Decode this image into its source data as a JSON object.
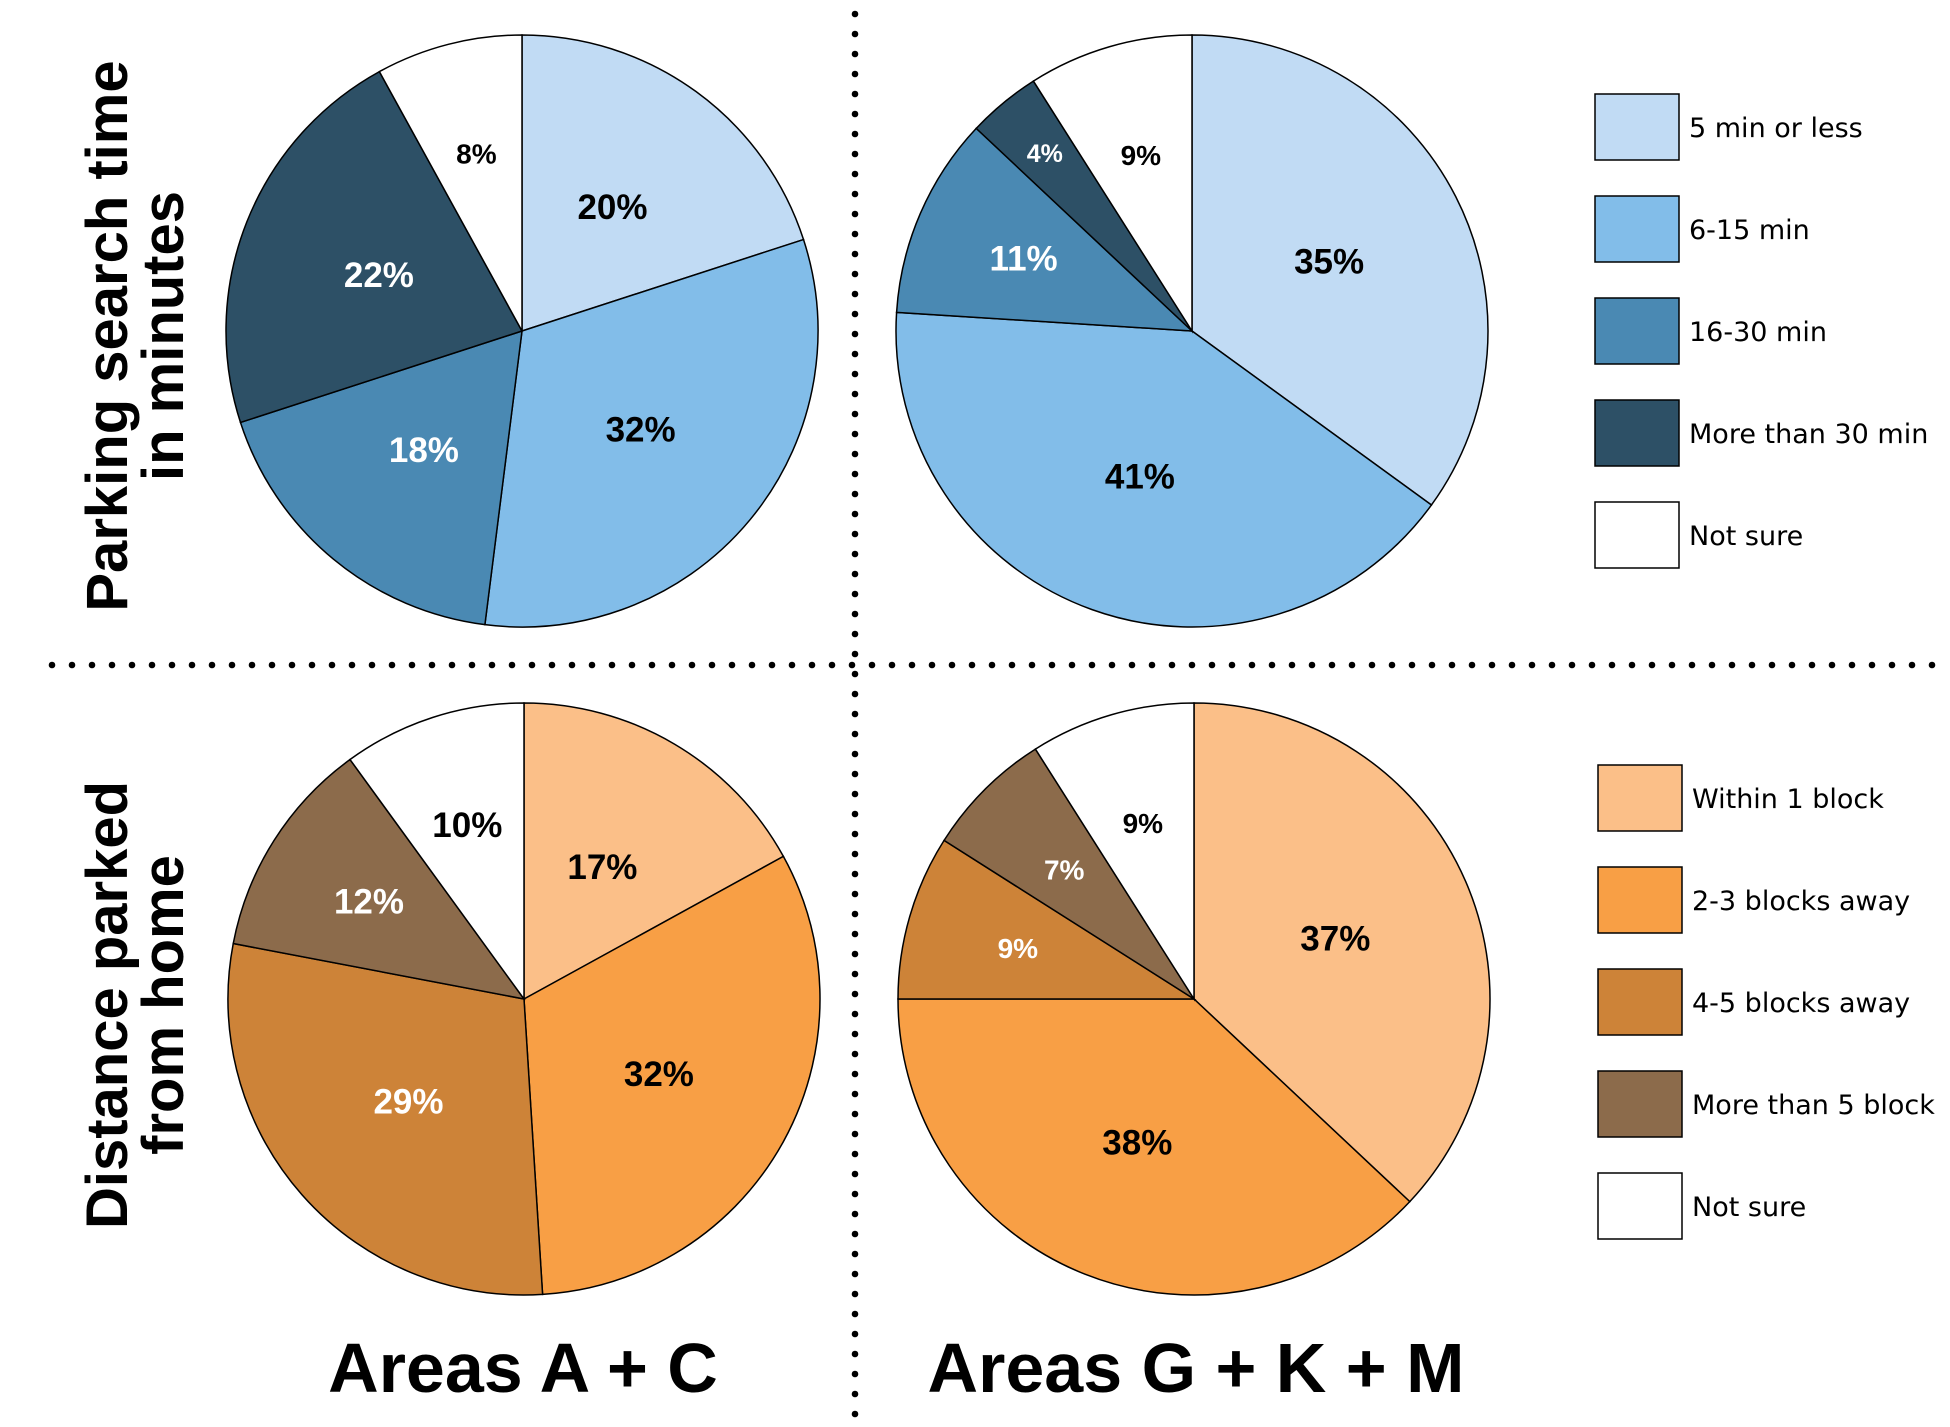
{
  "row_titles": {
    "top": [
      "Parking search time",
      "in minutes"
    ],
    "bottom": [
      "Distance parked",
      "from home"
    ]
  },
  "column_titles": [
    "Areas A + C",
    "Areas G + K + M"
  ],
  "legends": {
    "time": [
      {
        "label": "5 min or less",
        "color": "#c1dbf4"
      },
      {
        "label": "6-15 min",
        "color": "#82bde9"
      },
      {
        "label": "16-30 min",
        "color": "#4a89b3"
      },
      {
        "label": "More than 30 min",
        "color": "#2d5066"
      },
      {
        "label": "Not sure",
        "color": "#ffffff"
      }
    ],
    "distance": [
      {
        "label": "Within 1 block",
        "color": "#fbbf88"
      },
      {
        "label": "2-3 blocks away",
        "color": "#f89f45"
      },
      {
        "label": "4-5 blocks away",
        "color": "#cd8338"
      },
      {
        "label": "More than 5 block",
        "color": "#8c6b4b"
      },
      {
        "label": "Not sure",
        "color": "#ffffff"
      }
    ]
  },
  "chart_data": [
    {
      "type": "pie",
      "title": "",
      "row": "Parking search time in minutes",
      "column": "Areas A + C",
      "categories": [
        "5 min or less",
        "6-15 min",
        "16-30 min",
        "More than 30 min",
        "Not sure"
      ],
      "values": [
        20,
        32,
        18,
        22,
        8
      ],
      "labels": [
        "20%",
        "32%",
        "18%",
        "22%",
        "8%"
      ],
      "colors": [
        "#c1dbf4",
        "#82bde9",
        "#4a89b3",
        "#2d5066",
        "#ffffff"
      ],
      "label_colors": [
        "#000000",
        "#000000",
        "#ffffff",
        "#ffffff",
        "#000000"
      ]
    },
    {
      "type": "pie",
      "title": "",
      "row": "Parking search time in minutes",
      "column": "Areas G + K + M",
      "categories": [
        "5 min or less",
        "6-15 min",
        "16-30 min",
        "More than 30 min",
        "Not sure"
      ],
      "values": [
        35,
        41,
        11,
        4,
        9
      ],
      "labels": [
        "35%",
        "41%",
        "11%",
        "4%",
        "9%"
      ],
      "colors": [
        "#c1dbf4",
        "#82bde9",
        "#4a89b3",
        "#2d5066",
        "#ffffff"
      ],
      "label_colors": [
        "#000000",
        "#000000",
        "#ffffff",
        "#ffffff",
        "#000000"
      ]
    },
    {
      "type": "pie",
      "title": "",
      "row": "Distance parked from home",
      "column": "Areas A + C",
      "categories": [
        "Within 1 block",
        "2-3 blocks away",
        "4-5 blocks away",
        "More than 5 block",
        "Not sure"
      ],
      "values": [
        17,
        32,
        29,
        12,
        10
      ],
      "labels": [
        "17%",
        "32%",
        "29%",
        "12%",
        "10%"
      ],
      "colors": [
        "#fbbf88",
        "#f89f45",
        "#cd8338",
        "#8c6b4b",
        "#ffffff"
      ],
      "label_colors": [
        "#000000",
        "#000000",
        "#ffffff",
        "#ffffff",
        "#000000"
      ]
    },
    {
      "type": "pie",
      "title": "",
      "row": "Distance parked from home",
      "column": "Areas G + K + M",
      "categories": [
        "Within 1 block",
        "2-3 blocks away",
        "4-5 blocks away",
        "More than 5 block",
        "Not sure"
      ],
      "values": [
        37,
        38,
        9,
        7,
        9
      ],
      "labels": [
        "37%",
        "38%",
        "9%",
        "7%",
        "9%"
      ],
      "colors": [
        "#fbbf88",
        "#f89f45",
        "#cd8338",
        "#8c6b4b",
        "#ffffff"
      ],
      "label_colors": [
        "#000000",
        "#000000",
        "#ffffff",
        "#ffffff",
        "#000000"
      ]
    }
  ]
}
